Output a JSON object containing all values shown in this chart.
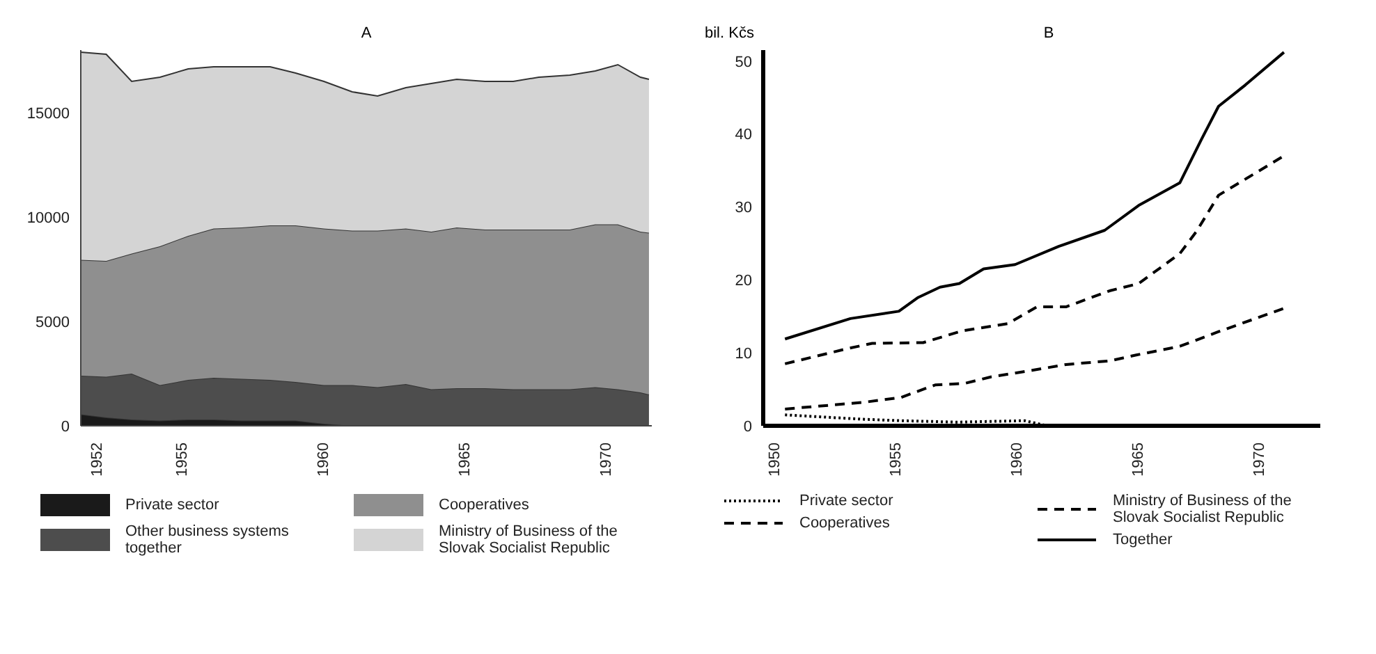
{
  "chart_data": [
    {
      "type": "area",
      "title": "A",
      "stacked": true,
      "legend": "bottom",
      "x": [
        1951.4,
        1952.3,
        1953.2,
        1954.2,
        1955.2,
        1956.1,
        1957.1,
        1958.1,
        1959.0,
        1960.0,
        1961.0,
        1961.9,
        1962.9,
        1963.8,
        1964.7,
        1965.7,
        1966.7,
        1967.6,
        1968.7,
        1969.6,
        1970.4,
        1971.2,
        1971.5
      ],
      "xlim": [
        1951.4,
        1971.6
      ],
      "xticks": [
        1952,
        1955,
        1960,
        1965,
        1970
      ],
      "ylim": [
        0,
        18000
      ],
      "yticks": [
        0,
        5000,
        10000,
        15000
      ],
      "series": [
        {
          "name": "Private sector",
          "color": "#1a1a1a",
          "values": [
            550,
            400,
            300,
            250,
            300,
            300,
            250,
            250,
            250,
            100,
            0,
            0,
            0,
            0,
            0,
            0,
            0,
            0,
            0,
            0,
            0,
            0,
            0
          ]
        },
        {
          "name": "Other business systems together",
          "color": "#4d4d4d",
          "values": [
            1850,
            1950,
            2200,
            1700,
            1900,
            2000,
            2000,
            1950,
            1850,
            1850,
            1950,
            1850,
            2000,
            1750,
            1800,
            1800,
            1750,
            1750,
            1750,
            1850,
            1750,
            1600,
            1500
          ]
        },
        {
          "name": "Cooperatives",
          "color": "#8f8f8f",
          "values": [
            5550,
            5550,
            5750,
            6650,
            6900,
            7150,
            7250,
            7400,
            7500,
            7500,
            7400,
            7500,
            7450,
            7550,
            7700,
            7600,
            7650,
            7650,
            7650,
            7800,
            7900,
            7700,
            7750
          ]
        },
        {
          "name": "Ministry of Business of the Slovak Socialist Republic",
          "color": "#d4d4d4",
          "values": [
            9950,
            9900,
            8250,
            8100,
            8000,
            7750,
            7700,
            7600,
            7300,
            7050,
            6650,
            6450,
            6750,
            7100,
            7100,
            7100,
            7100,
            7300,
            7400,
            7350,
            7650,
            7400,
            7350
          ]
        }
      ]
    },
    {
      "type": "line",
      "title": "B",
      "ylabel": "bil. Kčs",
      "legend": "bottom",
      "xlim": [
        1949.5,
        1972.5
      ],
      "xticks": [
        1950,
        1955,
        1960,
        1965,
        1970
      ],
      "ylim": [
        0,
        51.5
      ],
      "yticks": [
        0,
        10,
        20,
        30,
        40,
        50
      ],
      "series": [
        {
          "name": "Private sector",
          "color": "#000000",
          "line_style": "dotted",
          "x": [
            1950.4,
            1953.6,
            1955.2,
            1957.5,
            1958.9,
            1960.3,
            1961.1
          ],
          "values": [
            1.5,
            0.9,
            0.7,
            0.5,
            0.6,
            0.7,
            0.1
          ]
        },
        {
          "name": "Cooperatives",
          "color": "#000000",
          "line_style": "dashed",
          "x": [
            1950.4,
            1953.6,
            1955.2,
            1956.6,
            1957.8,
            1958.9,
            1960.6,
            1962.0,
            1963.8,
            1964.9,
            1966.7,
            1968.3,
            1971.0
          ],
          "values": [
            2.3,
            3.2,
            3.9,
            5.6,
            5.8,
            6.7,
            7.6,
            8.4,
            8.9,
            9.7,
            10.9,
            12.9,
            16.1
          ]
        },
        {
          "name": "Ministry of Business of the Slovak Socialist Republic",
          "color": "#000000",
          "line_style": "dashed",
          "x": [
            1950.4,
            1953.0,
            1954.0,
            1956.1,
            1957.7,
            1959.6,
            1960.8,
            1962.0,
            1963.8,
            1965.0,
            1966.7,
            1967.4,
            1968.3,
            1971.0
          ],
          "values": [
            8.5,
            10.6,
            11.3,
            11.4,
            13.0,
            14.0,
            16.3,
            16.3,
            18.5,
            19.5,
            23.6,
            26.7,
            31.6,
            37.0
          ]
        },
        {
          "name": "Together",
          "color": "#000000",
          "line_style": "solid",
          "x": [
            1950.4,
            1953.1,
            1955.1,
            1955.9,
            1956.8,
            1957.6,
            1958.6,
            1959.9,
            1961.7,
            1963.6,
            1965.0,
            1966.7,
            1967.6,
            1968.3,
            1969.4,
            1971.0
          ],
          "values": [
            11.9,
            14.7,
            15.7,
            17.6,
            19.0,
            19.5,
            21.5,
            22.1,
            24.6,
            26.8,
            30.2,
            33.3,
            39.3,
            43.8,
            46.7,
            51.2
          ]
        }
      ]
    }
  ]
}
